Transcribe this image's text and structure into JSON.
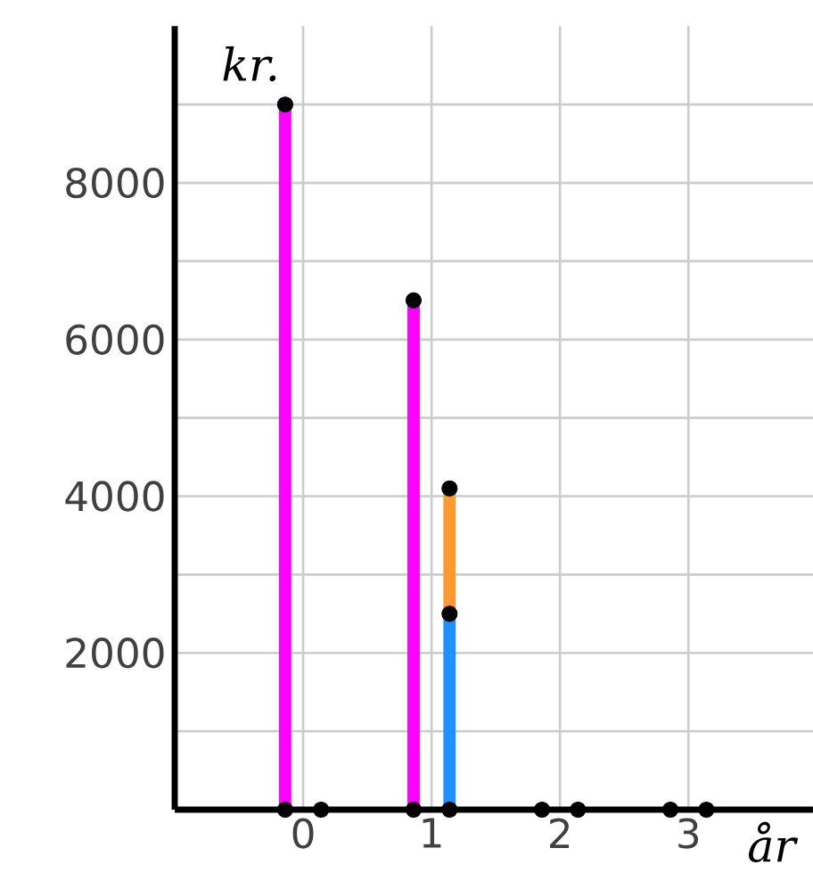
{
  "chart_data": {
    "type": "bar",
    "stacked": true,
    "xlabel": "år",
    "ylabel": "kr.",
    "x": [
      -0.14,
      0.86,
      1.14
    ],
    "xlim": [
      -1,
      3.97
    ],
    "ylim": [
      0,
      10000
    ],
    "xticks": [
      0,
      1,
      2,
      3
    ],
    "yticks": [
      {
        "value": 1000,
        "label": null
      },
      2000,
      {
        "value": 3000,
        "label": null
      },
      4000,
      {
        "value": 5000,
        "label": null
      },
      6000,
      {
        "value": 7000,
        "label": null
      },
      8000,
      {
        "value": 9000,
        "label": null
      }
    ],
    "grid": true,
    "marker": "circle",
    "series": [
      {
        "color": "#ff00ff",
        "values": [
          9000,
          6500,
          null
        ]
      },
      {
        "color": "#1e90ff",
        "values": [
          null,
          null,
          2500
        ]
      },
      {
        "color": "#ff9933",
        "values": [
          null,
          null,
          1600
        ]
      },
      {
        "type": "scatter",
        "color": "#000000",
        "x": [
          -0.14,
          0.14,
          0.86,
          1.14,
          1.86,
          2.14,
          2.86,
          3.14,
          -0.14,
          0.86,
          1.14,
          1.14
        ],
        "values": [
          0,
          0,
          0,
          0,
          0,
          0,
          0,
          0,
          9000,
          6500,
          2500,
          4100
        ]
      }
    ]
  }
}
